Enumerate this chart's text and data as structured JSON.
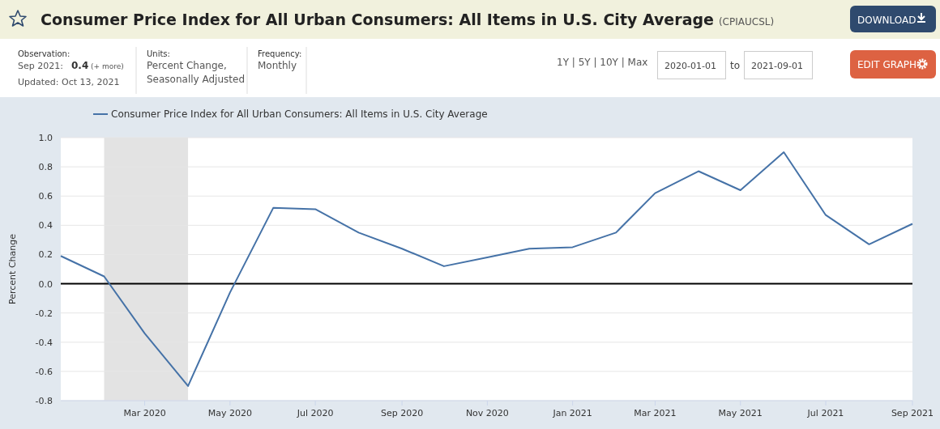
{
  "chart_data": {
    "type": "line",
    "title": "Consumer Price Index for All Urban Consumers: All Items in U.S. City Average",
    "subtitle": "(CPIAUCSL)",
    "ylabel": "Percent Change",
    "x": [
      "2020-01",
      "2020-02",
      "2020-03",
      "2020-04",
      "2020-05",
      "2020-06",
      "2020-07",
      "2020-08",
      "2020-09",
      "2020-10",
      "2020-11",
      "2020-12",
      "2021-01",
      "2021-02",
      "2021-03",
      "2021-04",
      "2021-05",
      "2021-06",
      "2021-07",
      "2021-08",
      "2021-09"
    ],
    "series": [
      {
        "name": "Consumer Price Index for All Urban Consumers: All Items in U.S. City Average",
        "color": "#4572a7",
        "values": [
          0.19,
          0.05,
          -0.34,
          -0.7,
          -0.06,
          0.52,
          0.51,
          0.35,
          0.24,
          0.12,
          0.18,
          0.24,
          0.25,
          0.35,
          0.62,
          0.77,
          0.64,
          0.9,
          0.47,
          0.27,
          0.41
        ]
      }
    ],
    "xlim": [
      "2020-01",
      "2021-09"
    ],
    "xticks": [
      {
        "value": "2020-03",
        "label": "Mar 2020"
      },
      {
        "value": "2020-05",
        "label": "May 2020"
      },
      {
        "value": "2020-07",
        "label": "Jul 2020"
      },
      {
        "value": "2020-09",
        "label": "Sep 2020"
      },
      {
        "value": "2020-11",
        "label": "Nov 2020"
      },
      {
        "value": "2021-01",
        "label": "Jan 2021"
      },
      {
        "value": "2021-03",
        "label": "Mar 2021"
      },
      {
        "value": "2021-05",
        "label": "May 2021"
      },
      {
        "value": "2021-07",
        "label": "Jul 2021"
      },
      {
        "value": "2021-09",
        "label": "Sep 2021"
      }
    ],
    "ylim": [
      -0.8,
      1.0
    ],
    "yticks": [
      {
        "value": -0.8,
        "label": "-0.8"
      },
      {
        "value": -0.6,
        "label": "-0.6"
      },
      {
        "value": -0.4,
        "label": "-0.4"
      },
      {
        "value": -0.2,
        "label": "-0.2"
      },
      {
        "value": 0,
        "label": "0.0"
      },
      {
        "value": 0.2,
        "label": "0.2"
      },
      {
        "value": 0.4,
        "label": "0.4"
      },
      {
        "value": 0.6,
        "label": "0.6"
      },
      {
        "value": 0.8,
        "label": "0.8"
      },
      {
        "value": 1.0,
        "label": "1.0"
      }
    ],
    "bands": [
      {
        "axis": "x",
        "from": "2020-02",
        "to": "2020-04",
        "color": "#e3e3e3"
      }
    ],
    "ref_lines": [
      {
        "axis": "y",
        "value": 0,
        "color": "#000000"
      }
    ],
    "grid": "y",
    "legend": "top left",
    "marker": "none",
    "line_style": "solid",
    "annotations": [
      "Observation:",
      "Sep 2021:",
      "0.4",
      "(+ more)",
      "Updated: Oct 13, 2021",
      "Units:",
      "Percent Change,",
      "Seasonally Adjusted",
      "Frequency:",
      "Monthly",
      "1Y | 5Y | 10Y | Max",
      "2020-01-01",
      "to",
      "2021-09-01",
      "DOWNLOAD",
      "EDIT GRAPH"
    ]
  }
}
